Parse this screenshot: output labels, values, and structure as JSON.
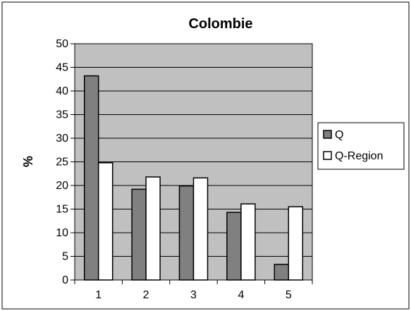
{
  "chart_data": {
    "type": "bar",
    "title": "Colombie",
    "xlabel": "",
    "ylabel": "%",
    "ylim": [
      0,
      50
    ],
    "yticks": [
      0,
      5,
      10,
      15,
      20,
      25,
      30,
      35,
      40,
      45,
      50
    ],
    "categories": [
      "1",
      "2",
      "3",
      "4",
      "5"
    ],
    "series": [
      {
        "name": "Q",
        "values": [
          43.2,
          19.2,
          19.9,
          14.3,
          3.3
        ],
        "color": "#808080"
      },
      {
        "name": "Q-Region",
        "values": [
          24.8,
          21.8,
          21.6,
          16.1,
          15.5
        ],
        "color": "#ffffff"
      }
    ],
    "grid": true,
    "plot_background": "#c0c0c0",
    "legend_position": "right"
  }
}
